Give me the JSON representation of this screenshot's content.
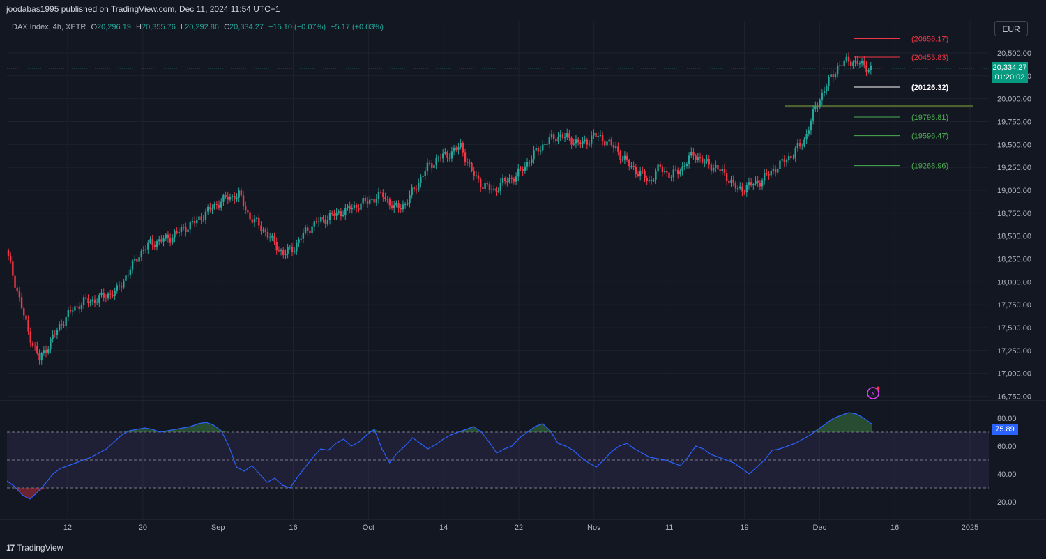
{
  "header": {
    "published": "joodabas1995 published on TradingView.com, Dec 11, 2024 11:54 UTC+1"
  },
  "legend": {
    "symbol": "DAX Index, 4h, XETR",
    "o_label": "O",
    "o": "20,296.19",
    "h_label": "H",
    "h": "20,355.76",
    "l_label": "L",
    "l": "20,292.86",
    "c_label": "C",
    "c": "20,334.27",
    "change": "−15.10 (−0.07%)",
    "extra": "+5.17 (+0.03%)"
  },
  "toolbar": {
    "currency": "EUR"
  },
  "price_badge": {
    "price": "20,334.27",
    "countdown": "01:20:02"
  },
  "rsi_badge": {
    "value": "75.89"
  },
  "footer": {
    "logo_text": "TradingView",
    "logo_mark": "17"
  },
  "colors": {
    "background": "#131722",
    "up": "#26a69a",
    "down": "#f23645",
    "rsi_line": "#2962ff",
    "rsi_band": "#7e57c2",
    "level_red": "#f23645",
    "level_white": "#ffffff",
    "level_green": "#4caf50",
    "zone": "#556b2f"
  },
  "chart_data": [
    {
      "type": "candlestick",
      "title": "DAX Index, 4h, XETR",
      "y_axis": {
        "ticks": [
          "20,500.00",
          "20,250.00",
          "20,000.00",
          "19,750.00",
          "19,500.00",
          "19,250.00",
          "19,000.00",
          "18,750.00",
          "18,500.00",
          "18,250.00",
          "18,000.00",
          "17,750.00",
          "17,500.00",
          "17,250.00",
          "17,000.00",
          "16,750.00"
        ],
        "tick_values": [
          20500,
          20250,
          20000,
          19750,
          19500,
          19250,
          19000,
          18750,
          18500,
          18250,
          18000,
          17750,
          17500,
          17250,
          17000,
          16750
        ],
        "range": [
          16700,
          20850
        ]
      },
      "x_axis": {
        "ticks": [
          "12",
          "20",
          "Sep",
          "16",
          "Oct",
          "14",
          "22",
          "Nov",
          "11",
          "19",
          "Dec",
          "16",
          "2025"
        ]
      },
      "series_ohlc_close_path": [
        18350,
        17900,
        17450,
        17150,
        17350,
        17550,
        17700,
        17780,
        17800,
        17850,
        17900,
        18100,
        18300,
        18420,
        18450,
        18500,
        18580,
        18650,
        18750,
        18850,
        18920,
        18950,
        18700,
        18600,
        18450,
        18300,
        18380,
        18550,
        18650,
        18700,
        18750,
        18800,
        18850,
        18900,
        18950,
        18800,
        18850,
        19050,
        19250,
        19350,
        19400,
        19480,
        19200,
        19050,
        19000,
        19100,
        19150,
        19300,
        19450,
        19550,
        19600,
        19550,
        19500,
        19600,
        19550,
        19450,
        19300,
        19200,
        19100,
        19250,
        19150,
        19250,
        19400,
        19300,
        19250,
        19150,
        19000,
        19050,
        19100,
        19200,
        19300,
        19400,
        19550,
        19900,
        20150,
        20350,
        20420,
        20380,
        20334
      ],
      "current_price": 20334.27,
      "levels": [
        {
          "label": "(20656.17)",
          "value": 20656.17,
          "color": "#f23645"
        },
        {
          "label": "(20453.83)",
          "value": 20453.83,
          "color": "#f23645"
        },
        {
          "label": "(20126.32)",
          "value": 20126.32,
          "color": "#ffffff"
        },
        {
          "label": "(19798.81)",
          "value": 19798.81,
          "color": "#4caf50"
        },
        {
          "label": "(19596.47)",
          "value": 19596.47,
          "color": "#4caf50"
        },
        {
          "label": "(19268.96)",
          "value": 19268.96,
          "color": "#4caf50"
        }
      ],
      "support_zone": 19920
    },
    {
      "type": "line",
      "title": "RSI",
      "y_axis": {
        "ticks": [
          "80.00",
          "60.00",
          "40.00",
          "20.00"
        ],
        "tick_values": [
          80,
          60,
          40,
          20
        ],
        "range": [
          10,
          85
        ]
      },
      "bands": {
        "upper": 70,
        "middle": 50,
        "lower": 30
      },
      "series": [
        {
          "values": [
            35,
            31,
            25,
            22,
            27,
            33,
            40,
            44,
            46,
            48,
            50,
            52,
            55,
            58,
            63,
            68,
            71,
            72,
            73,
            72,
            70,
            71,
            72,
            73,
            74,
            76,
            77,
            75,
            71,
            60,
            45,
            42,
            46,
            40,
            34,
            37,
            32,
            30,
            38,
            45,
            52,
            58,
            57,
            62,
            65,
            60,
            63,
            68,
            72,
            58,
            48,
            55,
            60,
            66,
            62,
            58,
            61,
            65,
            68,
            70,
            72,
            74,
            70,
            63,
            55,
            58,
            60,
            66,
            70,
            74,
            76,
            71,
            62,
            60,
            57,
            52,
            48,
            45,
            50,
            56,
            60,
            62,
            58,
            55,
            52,
            51,
            50,
            48,
            46,
            52,
            60,
            58,
            54,
            52,
            50,
            48,
            44,
            40,
            45,
            50,
            57,
            58,
            60,
            62,
            65,
            68,
            72,
            76,
            80,
            82,
            84,
            83,
            80,
            75.89
          ]
        }
      ],
      "last_value": 75.89
    }
  ]
}
